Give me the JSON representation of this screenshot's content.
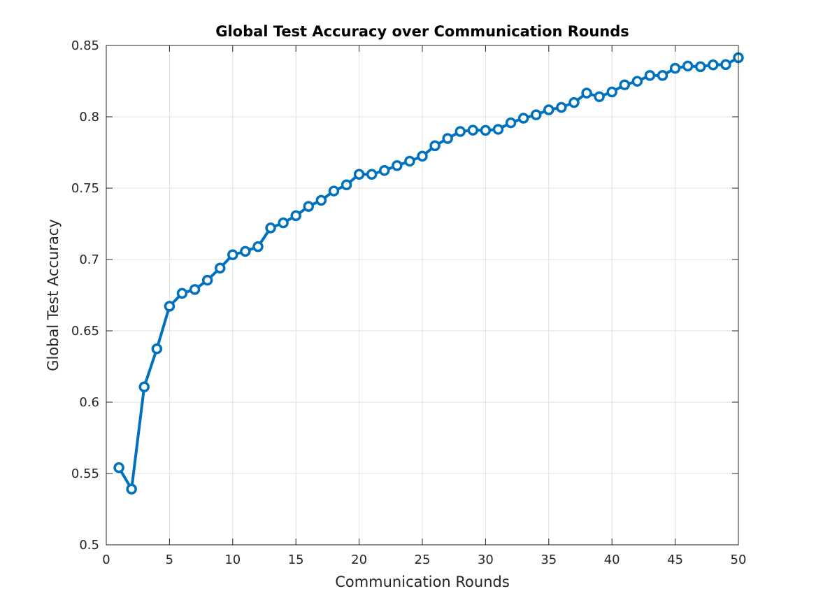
{
  "chart_data": {
    "type": "line",
    "title": "Global Test Accuracy over Communication Rounds",
    "xlabel": "Communication Rounds",
    "ylabel": "Global Test Accuracy",
    "xlim": [
      0,
      50
    ],
    "ylim": [
      0.5,
      0.85
    ],
    "xticks": [
      "0",
      "5",
      "10",
      "15",
      "20",
      "25",
      "30",
      "35",
      "40",
      "45",
      "50"
    ],
    "yticks": [
      "0.5",
      "0.55",
      "0.6",
      "0.65",
      "0.7",
      "0.75",
      "0.8",
      "0.85"
    ],
    "grid": true,
    "marker": "circle",
    "line_color": "#0072BD",
    "series": [
      {
        "x": [
          1,
          2,
          3,
          4,
          5,
          6,
          7,
          8,
          9,
          10,
          11,
          12,
          13,
          14,
          15,
          16,
          17,
          18,
          19,
          20,
          21,
          22,
          23,
          24,
          25,
          26,
          27,
          28,
          29,
          30,
          31,
          32,
          33,
          34,
          35,
          36,
          37,
          38,
          39,
          40,
          41,
          42,
          43,
          44,
          45,
          46,
          47,
          48,
          49,
          50
        ],
        "values": [
          0.5541,
          0.5391,
          0.6107,
          0.6374,
          0.6672,
          0.6763,
          0.679,
          0.6855,
          0.694,
          0.7033,
          0.7057,
          0.709,
          0.7221,
          0.7257,
          0.7307,
          0.7372,
          0.7415,
          0.748,
          0.7523,
          0.7597,
          0.7597,
          0.7624,
          0.7658,
          0.7689,
          0.7724,
          0.7797,
          0.7848,
          0.7897,
          0.7906,
          0.7905,
          0.7912,
          0.7958,
          0.799,
          0.8014,
          0.8049,
          0.8066,
          0.81,
          0.8166,
          0.8141,
          0.8174,
          0.8224,
          0.8249,
          0.829,
          0.829,
          0.834,
          0.8356,
          0.8351,
          0.8364,
          0.8366,
          0.8414
        ]
      }
    ]
  }
}
